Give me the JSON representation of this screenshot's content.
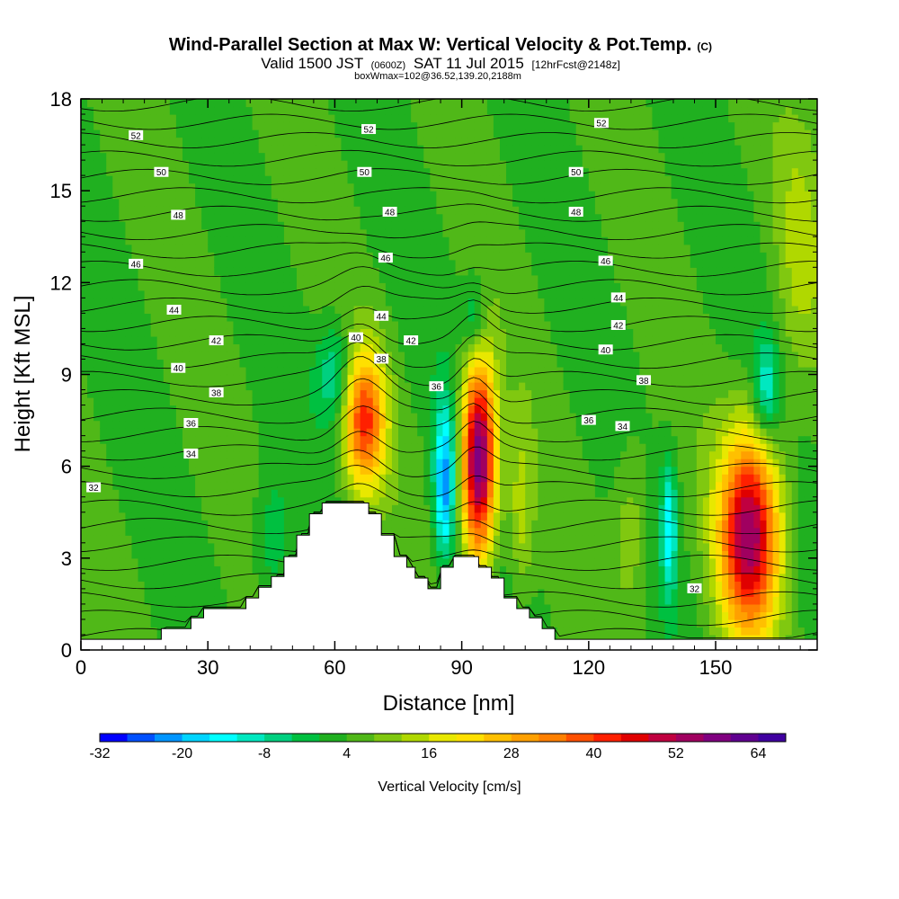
{
  "title": {
    "main": "Wind-Parallel Section at Max W: Vertical Velocity & Pot.Temp.",
    "copyright": "(C)",
    "line2_a": "Valid 1500 JST",
    "line2_b": "(0600Z)",
    "line2_c": "SAT 11 Jul 2015",
    "line2_d": "[12hrFcst@2148z]",
    "line3": "boxWmax=102@36.52,139.20,2188m"
  },
  "chart_data": {
    "type": "heatmap",
    "xlabel": "Distance [nm]",
    "ylabel": "Height [Kft MSL]",
    "xlim": [
      0,
      174
    ],
    "ylim": [
      0,
      18
    ],
    "x_ticks": [
      "0",
      "30",
      "60",
      "90",
      "120",
      "150"
    ],
    "x_tick_values": [
      0,
      30,
      60,
      90,
      120,
      150
    ],
    "y_ticks": [
      "0",
      "3",
      "6",
      "9",
      "12",
      "15",
      "18"
    ],
    "y_tick_values": [
      0,
      3,
      6,
      9,
      12,
      15,
      18
    ],
    "colorbar": {
      "label": "Vertical Velocity [cm/s]",
      "min": -32,
      "max": 68,
      "step": 4,
      "tick_labels": [
        "-32",
        "-20",
        "-8",
        "4",
        "16",
        "28",
        "40",
        "52",
        "64"
      ],
      "tick_values": [
        -32,
        -20,
        -8,
        4,
        16,
        28,
        40,
        52,
        64
      ],
      "colors": [
        "#0000ff",
        "#0050ff",
        "#0095ff",
        "#00d4ff",
        "#00ffff",
        "#00e8c0",
        "#00d080",
        "#00c040",
        "#20b020",
        "#50b818",
        "#80c810",
        "#b0d800",
        "#e8e800",
        "#ffe000",
        "#ffc000",
        "#ffa000",
        "#ff8000",
        "#ff5000",
        "#ff2000",
        "#e00000",
        "#c00040",
        "#a00060",
        "#800080",
        "#600090",
        "#4000a0"
      ]
    },
    "terrain": [
      [
        0,
        0.35
      ],
      [
        19,
        0.35
      ],
      [
        19,
        0.7
      ],
      [
        26,
        0.7
      ],
      [
        26,
        1.05
      ],
      [
        29,
        1.05
      ],
      [
        29,
        1.35
      ],
      [
        39,
        1.35
      ],
      [
        39,
        1.7
      ],
      [
        42,
        1.7
      ],
      [
        42,
        2.05
      ],
      [
        45,
        2.05
      ],
      [
        45,
        2.4
      ],
      [
        48,
        2.4
      ],
      [
        48,
        3.05
      ],
      [
        51,
        3.05
      ],
      [
        51,
        3.75
      ],
      [
        54,
        3.75
      ],
      [
        54,
        4.45
      ],
      [
        57,
        4.45
      ],
      [
        57,
        4.8
      ],
      [
        68,
        4.8
      ],
      [
        68,
        4.45
      ],
      [
        71,
        4.45
      ],
      [
        71,
        3.75
      ],
      [
        74,
        3.75
      ],
      [
        74,
        3.05
      ],
      [
        77,
        3.05
      ],
      [
        77,
        2.7
      ],
      [
        79,
        2.7
      ],
      [
        79,
        2.35
      ],
      [
        82,
        2.35
      ],
      [
        82,
        2.0
      ],
      [
        85,
        2.0
      ],
      [
        85,
        2.7
      ],
      [
        88,
        2.7
      ],
      [
        88,
        3.05
      ],
      [
        94,
        3.05
      ],
      [
        94,
        2.7
      ],
      [
        97,
        2.7
      ],
      [
        97,
        2.35
      ],
      [
        100,
        2.35
      ],
      [
        100,
        1.7
      ],
      [
        103,
        1.7
      ],
      [
        103,
        1.35
      ],
      [
        106,
        1.35
      ],
      [
        106,
        1.05
      ],
      [
        109,
        1.05
      ],
      [
        109,
        0.7
      ],
      [
        112,
        0.7
      ],
      [
        112,
        0.35
      ],
      [
        174,
        0.35
      ]
    ],
    "w_cores": [
      {
        "x": 67,
        "y": 7.5,
        "amp": 36,
        "sx": 3.5,
        "sy": 1.6
      },
      {
        "x": 94,
        "y": 6.2,
        "amp": 58,
        "sx": 2.8,
        "sy": 2.3
      },
      {
        "x": 158,
        "y": 3.8,
        "amp": 50,
        "sx": 5.0,
        "sy": 2.3
      },
      {
        "x": 86,
        "y": 5.5,
        "amp": -26,
        "sx": 1.8,
        "sy": 1.8
      },
      {
        "x": 139,
        "y": 4.0,
        "amp": -18,
        "sx": 1.3,
        "sy": 1.6
      },
      {
        "x": 162,
        "y": 8.5,
        "amp": -16,
        "sx": 2.0,
        "sy": 1.2
      },
      {
        "x": 60,
        "y": 9.0,
        "amp": -14,
        "sx": 3.0,
        "sy": 1.2
      },
      {
        "x": 93,
        "y": 10.8,
        "amp": -12,
        "sx": 2.0,
        "sy": 1.0
      },
      {
        "x": 45,
        "y": 3.5,
        "amp": -8,
        "sx": 3.0,
        "sy": 1.5
      },
      {
        "x": 104,
        "y": 4.5,
        "amp": 10,
        "sx": 2.0,
        "sy": 2.0
      },
      {
        "x": 130,
        "y": 4.0,
        "amp": 8,
        "sx": 3.0,
        "sy": 2.0
      },
      {
        "x": 170,
        "y": 13.0,
        "amp": 8,
        "sx": 4.0,
        "sy": 3.0
      }
    ],
    "theta_labels": [
      {
        "text": "52",
        "x": 13,
        "y": 16.8
      },
      {
        "text": "50",
        "x": 19,
        "y": 15.6
      },
      {
        "text": "48",
        "x": 23,
        "y": 14.2
      },
      {
        "text": "46",
        "x": 13,
        "y": 12.6
      },
      {
        "text": "44",
        "x": 22,
        "y": 11.1
      },
      {
        "text": "42",
        "x": 32,
        "y": 10.1
      },
      {
        "text": "40",
        "x": 23,
        "y": 9.2
      },
      {
        "text": "38",
        "x": 32,
        "y": 8.4
      },
      {
        "text": "36",
        "x": 26,
        "y": 7.4
      },
      {
        "text": "34",
        "x": 26,
        "y": 6.4
      },
      {
        "text": "32",
        "x": 3,
        "y": 5.3
      },
      {
        "text": "52",
        "x": 68,
        "y": 17.0
      },
      {
        "text": "50",
        "x": 67,
        "y": 15.6
      },
      {
        "text": "48",
        "x": 73,
        "y": 14.3
      },
      {
        "text": "46",
        "x": 72,
        "y": 12.8
      },
      {
        "text": "44",
        "x": 71,
        "y": 10.9
      },
      {
        "text": "42",
        "x": 78,
        "y": 10.1
      },
      {
        "text": "40",
        "x": 65,
        "y": 10.2
      },
      {
        "text": "38",
        "x": 71,
        "y": 9.5
      },
      {
        "text": "36",
        "x": 84,
        "y": 8.6
      },
      {
        "text": "52",
        "x": 123,
        "y": 17.2
      },
      {
        "text": "50",
        "x": 117,
        "y": 15.6
      },
      {
        "text": "48",
        "x": 117,
        "y": 14.3
      },
      {
        "text": "46",
        "x": 124,
        "y": 12.7
      },
      {
        "text": "44",
        "x": 127,
        "y": 11.5
      },
      {
        "text": "42",
        "x": 127,
        "y": 10.6
      },
      {
        "text": "40",
        "x": 124,
        "y": 9.8
      },
      {
        "text": "38",
        "x": 133,
        "y": 8.8
      },
      {
        "text": "36",
        "x": 120,
        "y": 7.5
      },
      {
        "text": "34",
        "x": 128,
        "y": 7.3
      },
      {
        "text": "32",
        "x": 145,
        "y": 2.0
      }
    ]
  }
}
